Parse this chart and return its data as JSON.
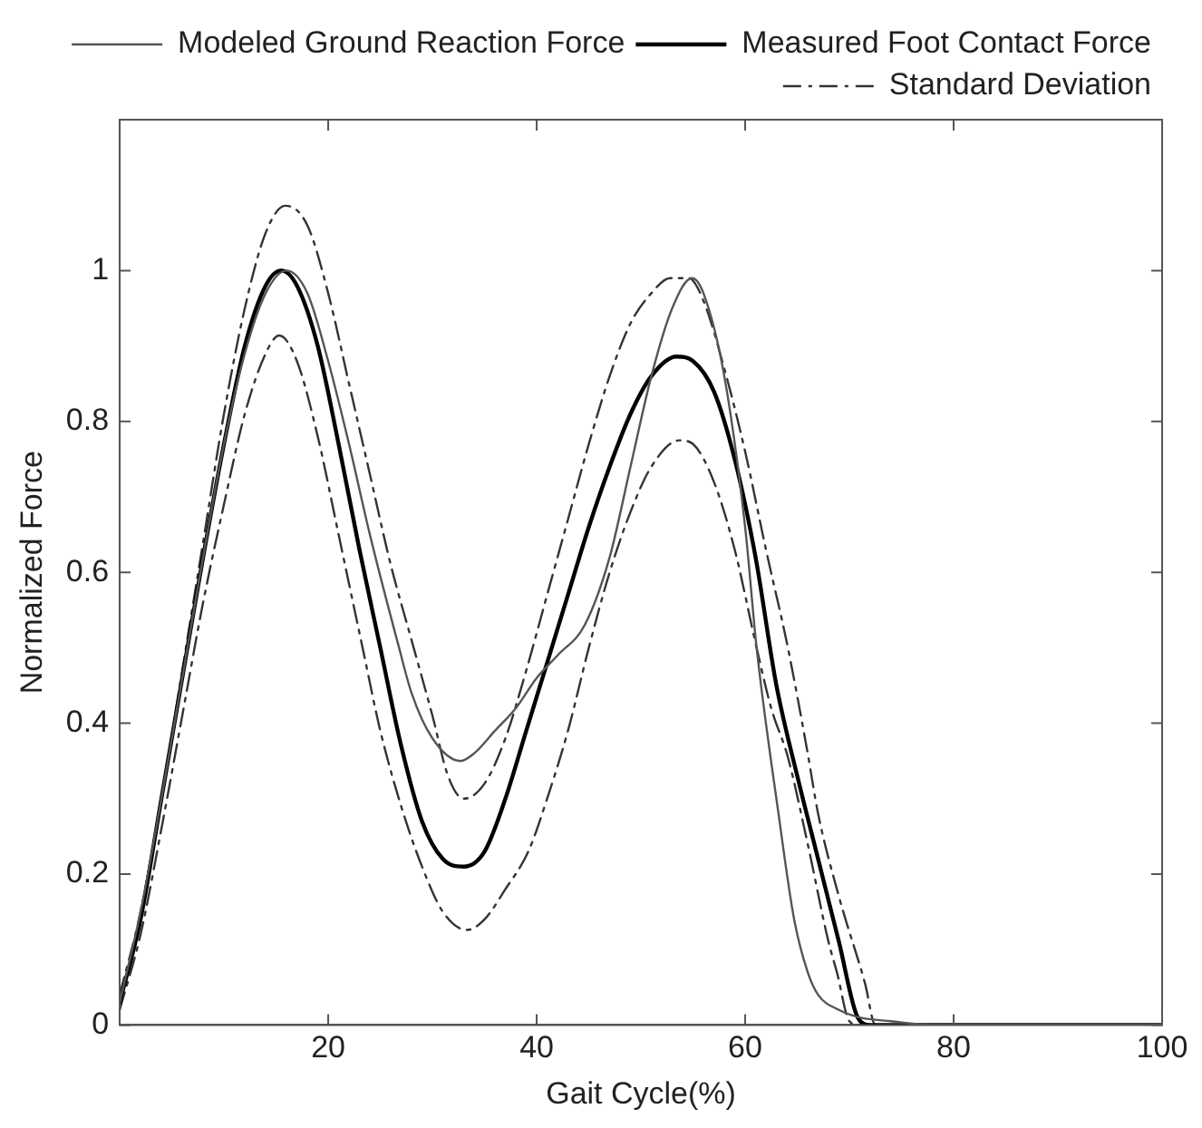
{
  "chart_data": {
    "type": "line",
    "xlabel": "Gait Cycle(%)",
    "ylabel": "Normalized Force",
    "xlim": [
      0,
      100
    ],
    "xticks": [
      20,
      40,
      60,
      80,
      100
    ],
    "ylim": [
      0,
      1.2
    ],
    "yticks": [
      0,
      0.2,
      0.4,
      0.6,
      0.8,
      1
    ],
    "grid": false,
    "legend": "top right",
    "marker": "none",
    "series": [
      {
        "name": "Modeled Ground Reaction Force",
        "color": "#555555",
        "line_style": "solid",
        "x": [
          0,
          2,
          4,
          6,
          8,
          10,
          12,
          14,
          16,
          18,
          20,
          22,
          24,
          26.8,
          28,
          30,
          32.7,
          34,
          36,
          38,
          40,
          42,
          44.6,
          47,
          49,
          51,
          53,
          54.9,
          56,
          58,
          60,
          61.1,
          63.2,
          64.7,
          66,
          67,
          69,
          71,
          74,
          78,
          100
        ],
        "values": [
          0.03,
          0.15,
          0.3,
          0.46,
          0.62,
          0.77,
          0.89,
          0.97,
          1.0,
          0.97,
          0.88,
          0.77,
          0.65,
          0.5,
          0.44,
          0.38,
          0.35,
          0.36,
          0.39,
          0.42,
          0.46,
          0.49,
          0.53,
          0.62,
          0.74,
          0.86,
          0.95,
          0.99,
          0.97,
          0.86,
          0.66,
          0.5,
          0.28,
          0.14,
          0.07,
          0.04,
          0.02,
          0.01,
          0.005,
          0,
          0
        ]
      },
      {
        "name": "Measured Foot Contact Force",
        "color": "#000000",
        "line_style": "solid",
        "x": [
          0,
          2,
          4,
          6,
          8,
          10,
          12,
          14,
          15.5,
          17,
          19,
          21,
          23,
          25,
          27,
          29,
          31,
          33,
          35,
          37,
          39,
          41,
          43,
          45,
          47,
          49,
          51,
          53.4,
          55,
          57,
          59,
          61,
          63,
          65,
          67,
          69,
          70.8,
          72,
          80,
          100
        ],
        "values": [
          0.03,
          0.14,
          0.3,
          0.46,
          0.62,
          0.77,
          0.9,
          0.98,
          1.0,
          0.98,
          0.9,
          0.77,
          0.63,
          0.5,
          0.37,
          0.27,
          0.22,
          0.21,
          0.23,
          0.3,
          0.39,
          0.48,
          0.57,
          0.66,
          0.74,
          0.81,
          0.86,
          0.886,
          0.88,
          0.84,
          0.75,
          0.62,
          0.45,
          0.33,
          0.22,
          0.11,
          0.01,
          0,
          0,
          0
        ]
      },
      {
        "name": "Standard Deviation",
        "color": "#333333",
        "line_style": "dashed",
        "x": [
          0,
          2,
          4,
          6,
          8,
          10,
          12,
          14,
          15.9,
          18,
          20,
          22,
          24,
          26,
          28,
          30,
          31.5,
          33,
          35,
          37,
          39,
          41,
          43,
          45,
          47,
          49,
          51,
          52.8,
          54.6,
          56,
          58,
          60,
          62,
          64.1,
          66,
          67,
          69,
          71.5,
          72.5,
          100
        ],
        "values": [
          0.04,
          0.15,
          0.3,
          0.47,
          0.64,
          0.81,
          0.95,
          1.05,
          1.086,
          1.06,
          0.97,
          0.85,
          0.73,
          0.61,
          0.51,
          0.41,
          0.33,
          0.3,
          0.32,
          0.38,
          0.47,
          0.57,
          0.67,
          0.77,
          0.86,
          0.93,
          0.97,
          0.99,
          0.99,
          0.96,
          0.87,
          0.76,
          0.63,
          0.5,
          0.36,
          0.28,
          0.17,
          0.055,
          0,
          0
        ]
      },
      {
        "color": "#333333",
        "line_style": "dashed",
        "x": [
          0,
          2,
          4,
          6,
          8,
          10,
          12,
          14,
          15.3,
          17,
          19,
          21,
          23.3,
          25,
          27,
          29,
          31,
          33.3,
          35,
          37,
          39.2,
          41,
          43,
          45,
          47,
          49,
          51,
          53.7,
          55,
          57,
          59,
          61.1,
          62.5,
          64.1,
          66,
          68,
          68.8,
          70,
          71,
          100
        ],
        "values": [
          0.02,
          0.12,
          0.26,
          0.41,
          0.56,
          0.69,
          0.81,
          0.89,
          0.914,
          0.88,
          0.78,
          0.65,
          0.5,
          0.39,
          0.29,
          0.21,
          0.15,
          0.126,
          0.14,
          0.18,
          0.23,
          0.3,
          0.39,
          0.5,
          0.6,
          0.68,
          0.74,
          0.775,
          0.77,
          0.72,
          0.63,
          0.5,
          0.42,
          0.355,
          0.24,
          0.11,
          0.07,
          0.005,
          0,
          0
        ]
      }
    ]
  }
}
